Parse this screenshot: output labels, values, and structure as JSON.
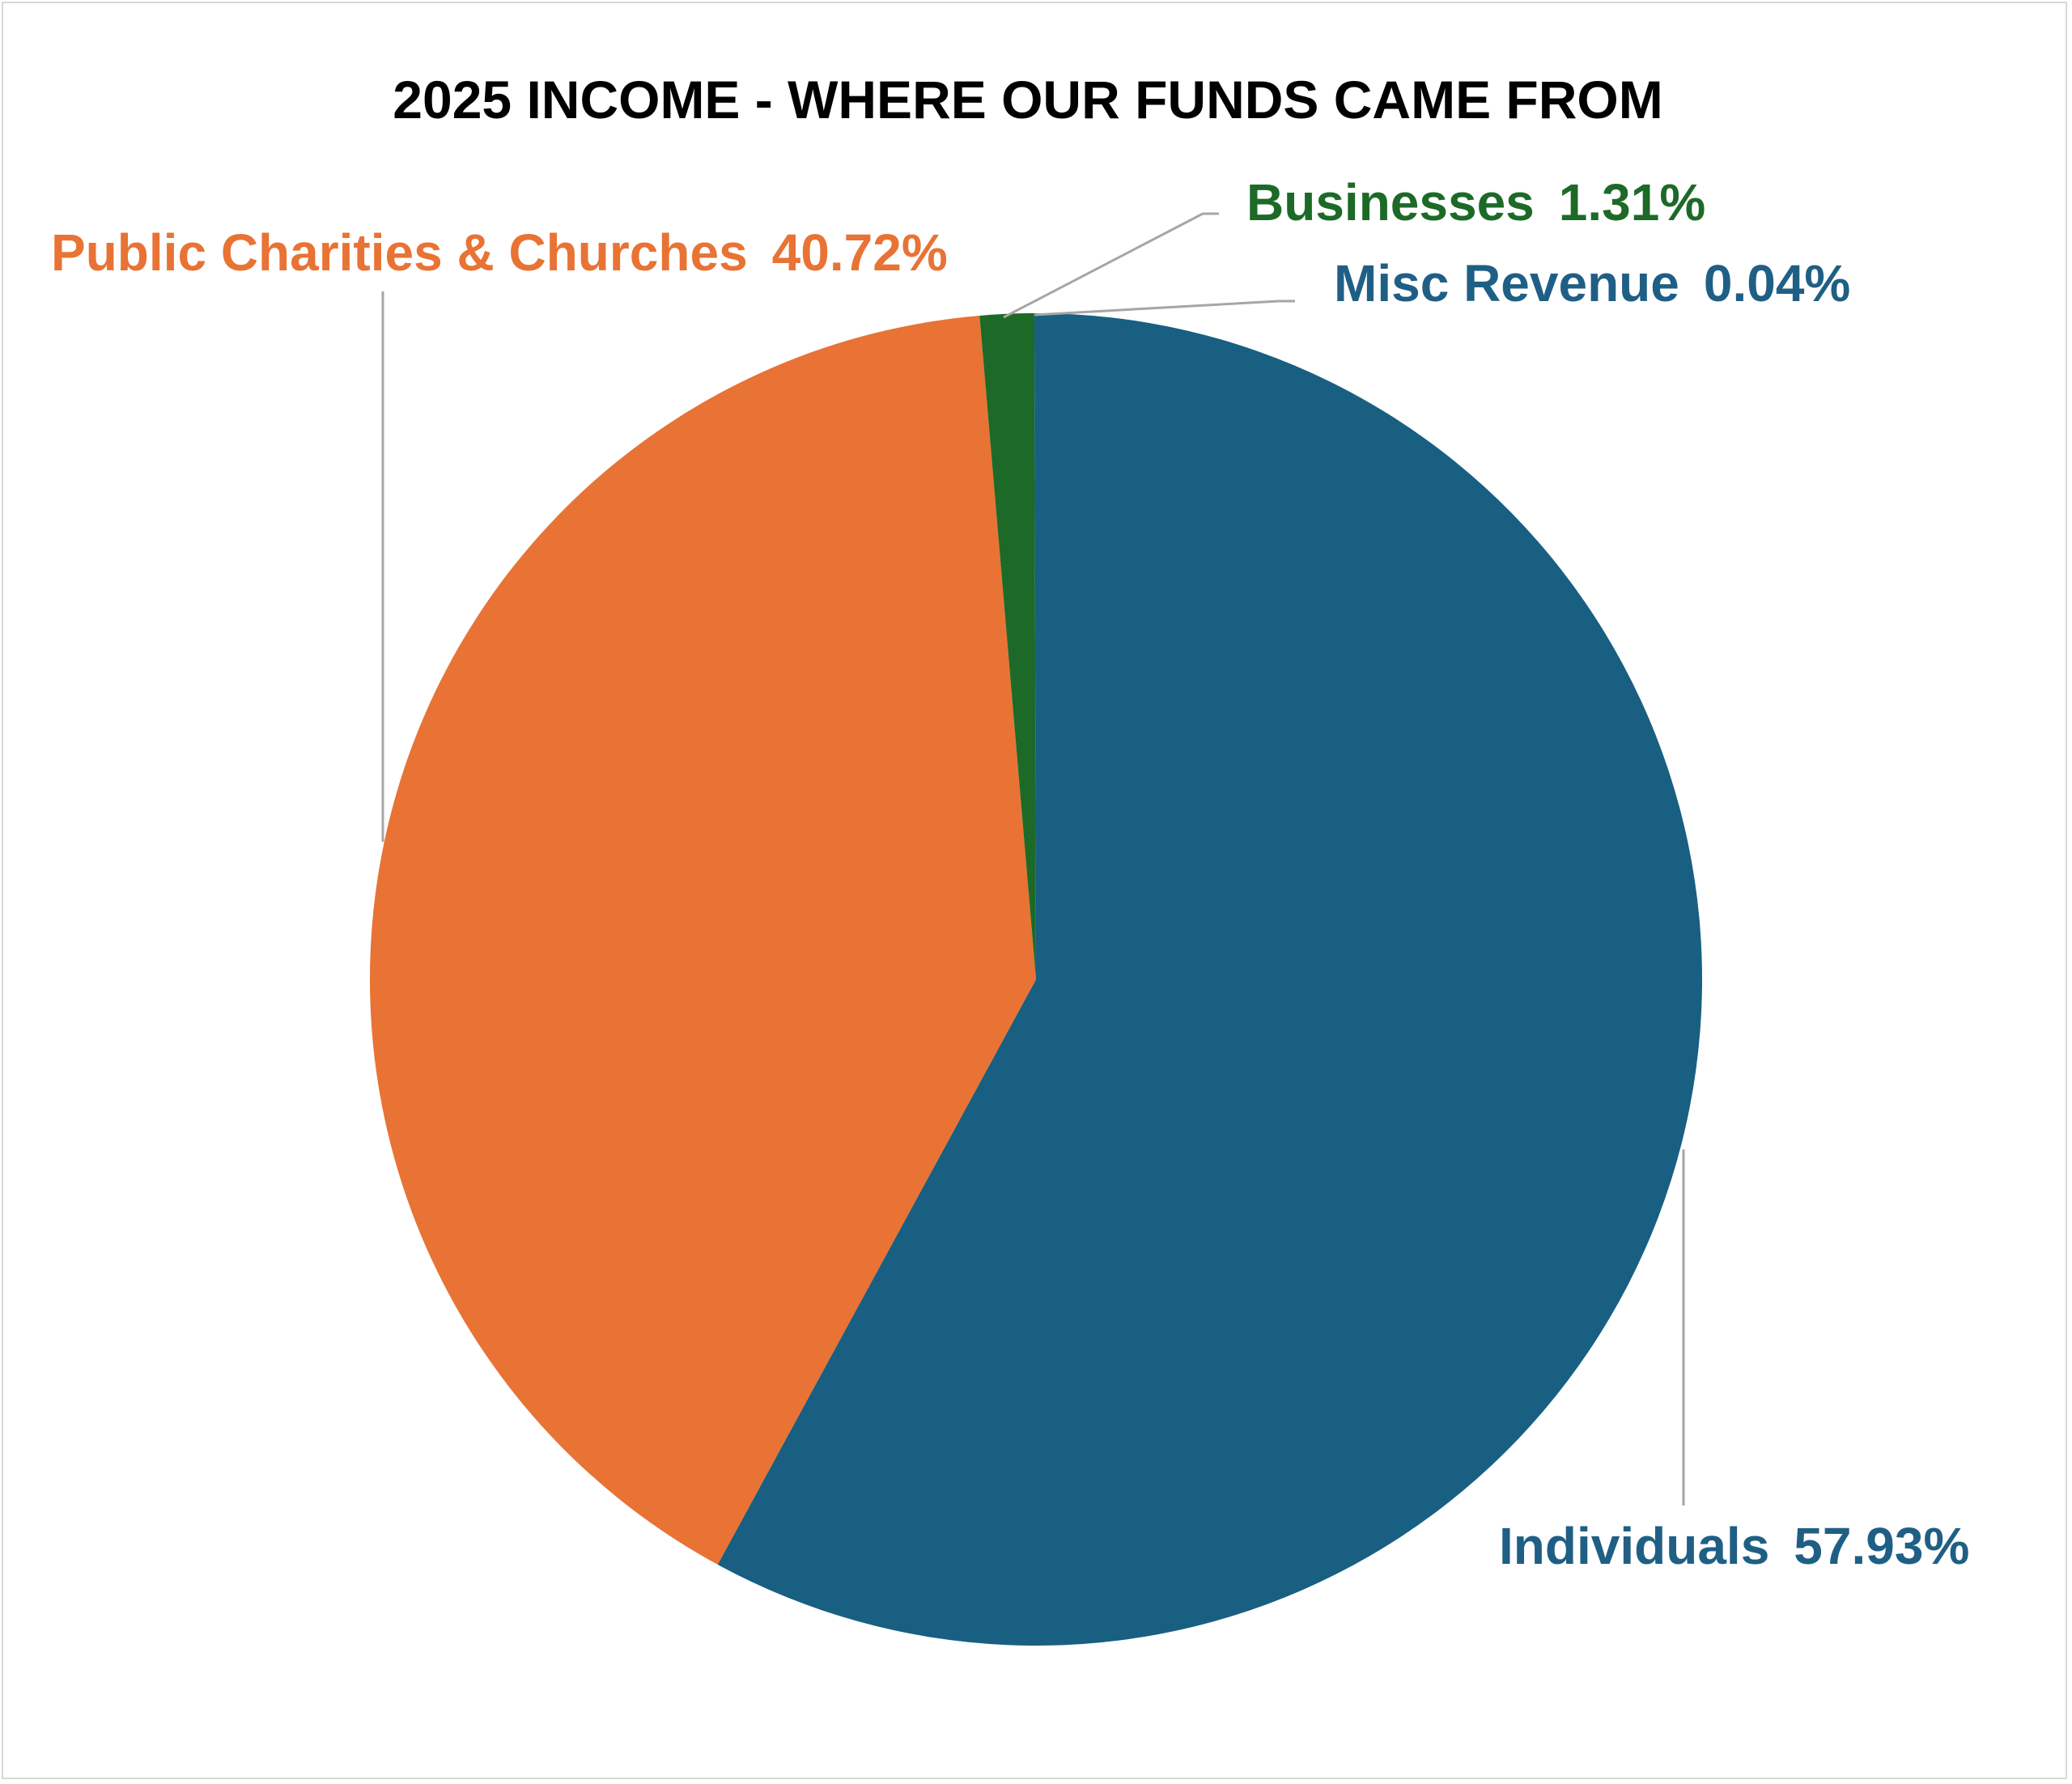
{
  "chart_data": {
    "type": "pie",
    "title": "2025 INCOME - WHERE OUR FUNDS CAME FROM",
    "slices": [
      {
        "label": "Individuals",
        "value": 57.93,
        "display": "57.93%",
        "color": "#185f82"
      },
      {
        "label": "Public Charities & Churches",
        "value": 40.72,
        "display": "40.72%",
        "color": "#e87334"
      },
      {
        "label": "Businesses",
        "value": 1.31,
        "display": "1.31%",
        "color": "#1d6a28"
      },
      {
        "label": "Misc Revenue",
        "value": 0.04,
        "display": "0.04%",
        "color": "#185f82"
      }
    ],
    "start_angle": "12 o'clock",
    "direction": "clockwise",
    "legend": "none",
    "data_labels": "outside with leader lines"
  }
}
